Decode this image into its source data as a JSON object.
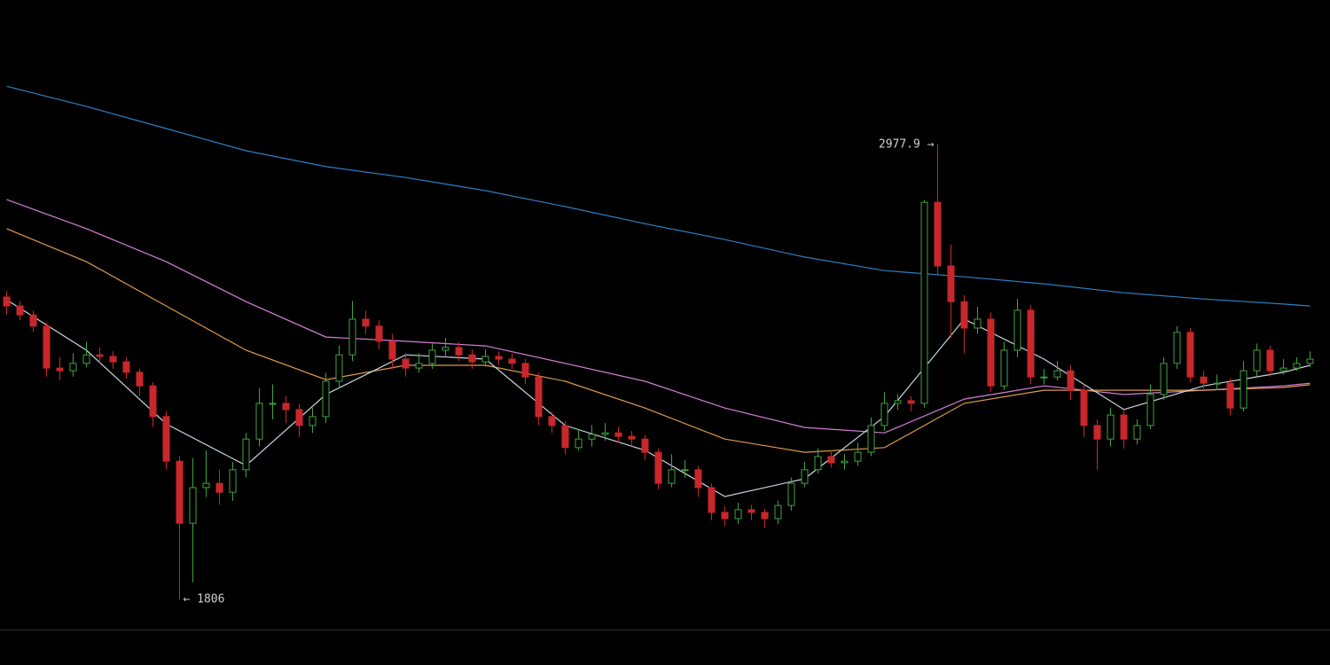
{
  "chart_data": {
    "type": "candlestick",
    "up_color": "#3fa33f",
    "down_color": "#c8272b",
    "open": [
      2585,
      2562,
      2539,
      2510,
      2402,
      2395,
      2414,
      2436,
      2432,
      2418,
      2391,
      2356,
      2277,
      2162,
      2002,
      2094,
      2105,
      2082,
      2140,
      2219,
      2311,
      2311,
      2295,
      2254,
      2277,
      2368,
      2436,
      2528,
      2510,
      2471,
      2425,
      2402,
      2414,
      2448,
      2455,
      2436,
      2418,
      2432,
      2425,
      2414,
      2379,
      2277,
      2254,
      2197,
      2219,
      2231,
      2235,
      2226,
      2219,
      2185,
      2105,
      2140,
      2140,
      2094,
      2030,
      2014,
      2037,
      2030,
      2014,
      2048,
      2105,
      2140,
      2174,
      2158,
      2162,
      2185,
      2254,
      2311,
      2318,
      2311,
      2829,
      2665,
      2573,
      2505,
      2528,
      2356,
      2448,
      2551,
      2379,
      2379,
      2395,
      2345,
      2254,
      2219,
      2281,
      2219,
      2254,
      2334,
      2414,
      2494,
      2379,
      2363,
      2363,
      2299,
      2395,
      2448,
      2395,
      2402,
      2414
    ],
    "high": [
      2600,
      2575,
      2550,
      2520,
      2430,
      2440,
      2470,
      2455,
      2445,
      2430,
      2400,
      2365,
      2290,
      2175,
      2170,
      2190,
      2140,
      2160,
      2235,
      2350,
      2360,
      2330,
      2310,
      2300,
      2390,
      2460,
      2575,
      2550,
      2525,
      2490,
      2440,
      2440,
      2465,
      2480,
      2470,
      2450,
      2450,
      2445,
      2440,
      2425,
      2390,
      2290,
      2265,
      2245,
      2255,
      2260,
      2250,
      2240,
      2230,
      2195,
      2180,
      2165,
      2150,
      2105,
      2045,
      2055,
      2050,
      2040,
      2060,
      2120,
      2160,
      2195,
      2190,
      2180,
      2210,
      2275,
      2340,
      2335,
      2330,
      2835,
      2977.9,
      2720,
      2590,
      2560,
      2545,
      2470,
      2580,
      2565,
      2400,
      2420,
      2410,
      2360,
      2270,
      2300,
      2295,
      2270,
      2360,
      2430,
      2510,
      2505,
      2395,
      2385,
      2375,
      2420,
      2465,
      2460,
      2425,
      2430,
      2445
    ],
    "low": [
      2540,
      2525,
      2495,
      2380,
      2370,
      2380,
      2405,
      2415,
      2400,
      2375,
      2330,
      2250,
      2140,
      1806,
      1850,
      2070,
      2050,
      2060,
      2120,
      2200,
      2270,
      2260,
      2225,
      2235,
      2260,
      2350,
      2420,
      2490,
      2450,
      2400,
      2380,
      2390,
      2400,
      2430,
      2420,
      2400,
      2405,
      2410,
      2400,
      2360,
      2255,
      2235,
      2180,
      2190,
      2200,
      2215,
      2210,
      2200,
      2165,
      2090,
      2095,
      2120,
      2070,
      2010,
      1995,
      2000,
      2010,
      1990,
      2000,
      2035,
      2095,
      2130,
      2145,
      2140,
      2150,
      2175,
      2240,
      2295,
      2290,
      2300,
      2640,
      2480,
      2440,
      2490,
      2340,
      2345,
      2430,
      2360,
      2360,
      2370,
      2320,
      2225,
      2140,
      2200,
      2195,
      2205,
      2245,
      2320,
      2400,
      2365,
      2345,
      2345,
      2280,
      2290,
      2380,
      2380,
      2385,
      2395,
      2405
    ],
    "close": [
      2562,
      2539,
      2510,
      2402,
      2395,
      2414,
      2436,
      2432,
      2418,
      2391,
      2356,
      2277,
      2162,
      2002,
      2094,
      2105,
      2082,
      2140,
      2219,
      2311,
      2311,
      2295,
      2254,
      2277,
      2368,
      2436,
      2528,
      2510,
      2471,
      2425,
      2402,
      2414,
      2448,
      2455,
      2436,
      2418,
      2432,
      2425,
      2414,
      2379,
      2277,
      2254,
      2197,
      2219,
      2231,
      2235,
      2226,
      2219,
      2185,
      2105,
      2140,
      2140,
      2094,
      2030,
      2014,
      2037,
      2030,
      2014,
      2048,
      2105,
      2140,
      2174,
      2158,
      2162,
      2185,
      2254,
      2311,
      2318,
      2311,
      2829,
      2665,
      2573,
      2505,
      2528,
      2356,
      2448,
      2551,
      2379,
      2379,
      2395,
      2345,
      2254,
      2219,
      2281,
      2219,
      2254,
      2334,
      2414,
      2494,
      2379,
      2363,
      2363,
      2299,
      2395,
      2448,
      2395,
      2402,
      2414,
      2425
    ],
    "ma_x": [
      0,
      6,
      12,
      18,
      24,
      30,
      36,
      42,
      48,
      54,
      60,
      66,
      72,
      78,
      84,
      90,
      96,
      98
    ],
    "series": [
      {
        "color": "#2d7fc4",
        "values": [
          3128,
          3076,
          3019,
          2962,
          2921,
          2893,
          2859,
          2818,
          2774,
          2733,
          2688,
          2653,
          2637,
          2619,
          2596,
          2580,
          2567,
          2562
        ]
      },
      {
        "color": "#d47fd8",
        "values": [
          2836,
          2761,
          2676,
          2573,
          2482,
          2471,
          2459,
          2414,
          2368,
          2299,
          2249,
          2235,
          2322,
          2356,
          2334,
          2345,
          2356,
          2363
        ]
      },
      {
        "color": "#dd9a4c",
        "values": [
          2761,
          2676,
          2562,
          2448,
          2372,
          2409,
          2409,
          2368,
          2299,
          2219,
          2185,
          2197,
          2311,
          2345,
          2345,
          2345,
          2352,
          2359
        ]
      },
      {
        "color": "#c9d6e0",
        "values": [
          2578,
          2448,
          2258,
          2151,
          2334,
          2436,
          2425,
          2254,
          2190,
          2071,
          2117,
          2277,
          2528,
          2425,
          2295,
          2356,
          2391,
          2409
        ]
      }
    ],
    "annotations": [
      {
        "label": "2977.9 →",
        "value": 2977.9
      },
      {
        "label": "← 1806",
        "value": 1806
      }
    ]
  }
}
